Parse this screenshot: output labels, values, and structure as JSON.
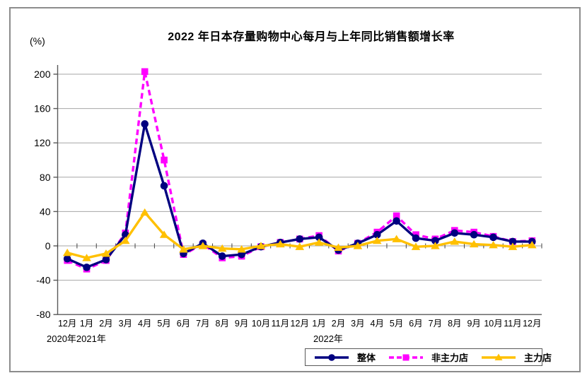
{
  "title": "2022 年日本存量购物中心每月与上年同比销售额增长率",
  "y_axis": {
    "unit_label": "(%)",
    "ticks": [
      200,
      160,
      120,
      80,
      40,
      0,
      -40,
      -80
    ]
  },
  "x_axis": {
    "year_labels": [
      "2020年2021年",
      "2022年"
    ]
  },
  "chart_data": {
    "type": "line",
    "categories": [
      "12月",
      "1月",
      "2月",
      "3月",
      "4月",
      "5月",
      "6月",
      "7月",
      "8月",
      "9月",
      "10月",
      "11月",
      "12月",
      "1月",
      "2月",
      "3月",
      "4月",
      "5月",
      "6月",
      "7月",
      "8月",
      "9月",
      "10月",
      "11月",
      "12月"
    ],
    "series": [
      {
        "name": "整体",
        "color": "#000080",
        "dash": "solid",
        "marker": "circle",
        "values": [
          -15,
          -25,
          -16,
          13,
          142,
          70,
          -9,
          3,
          -12,
          -10,
          -1,
          4,
          8,
          10,
          -5,
          3,
          13,
          29,
          9,
          6,
          15,
          13,
          10,
          5,
          5
        ]
      },
      {
        "name": "非主力店",
        "color": "#FF00FF",
        "dash": "dashed",
        "marker": "square",
        "values": [
          -17,
          -27,
          -17,
          15,
          203,
          100,
          -10,
          2,
          -14,
          -12,
          -1,
          4,
          8,
          12,
          -6,
          3,
          16,
          35,
          13,
          8,
          18,
          16,
          11,
          5,
          6
        ]
      },
      {
        "name": "主力店",
        "color": "#FFC000",
        "dash": "solid",
        "marker": "triangle",
        "values": [
          -8,
          -14,
          -9,
          6,
          39,
          13,
          -4,
          0,
          -3,
          -4,
          0,
          2,
          -1,
          4,
          -2,
          0,
          6,
          8,
          -1,
          0,
          5,
          2,
          1,
          -1,
          1
        ]
      }
    ],
    "ylim": [
      -80,
      200
    ],
    "grid": true,
    "legend_position": "bottom-right"
  }
}
